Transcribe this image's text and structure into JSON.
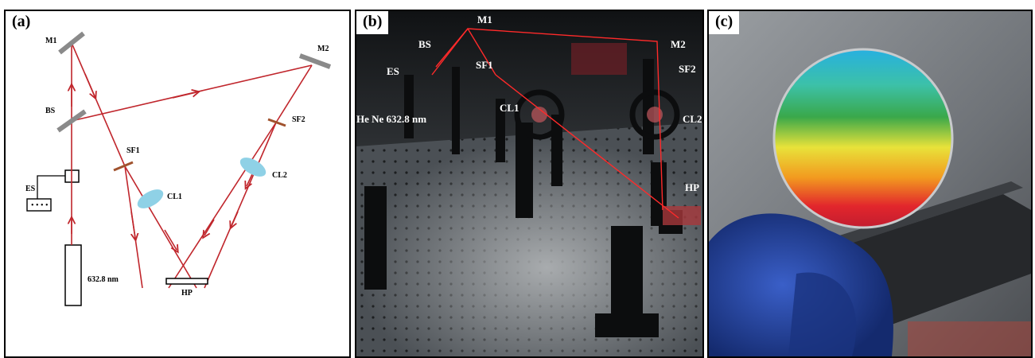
{
  "panel_a": {
    "label": "(a)",
    "components": {
      "m1": "M1",
      "m2": "M2",
      "bs": "BS",
      "es": "ES",
      "sf1": "SF1",
      "sf2": "SF2",
      "cl1": "CL1",
      "cl2": "CL2",
      "hp": "HP",
      "laser": "632.8 nm"
    },
    "colors": {
      "beam": "#c0262c",
      "lens": "#8fd1e6",
      "mirror": "#8a8a8a",
      "filter": "#a0522d"
    }
  },
  "panel_b": {
    "label": "(b)",
    "components": {
      "m1": "M1",
      "m2": "M2",
      "bs": "BS",
      "es": "ES",
      "sf1": "SF1",
      "sf2": "SF2",
      "cl1": "CL1",
      "cl2": "CL2",
      "hp": "HP",
      "laser": "He Ne 632.8 nm"
    },
    "colors": {
      "beam": "#ff2a2a",
      "table": "#3a3e42"
    }
  },
  "panel_c": {
    "label": "(c)",
    "colors": {
      "glove": "#1e3a8a",
      "background": "#6d7176"
    }
  }
}
